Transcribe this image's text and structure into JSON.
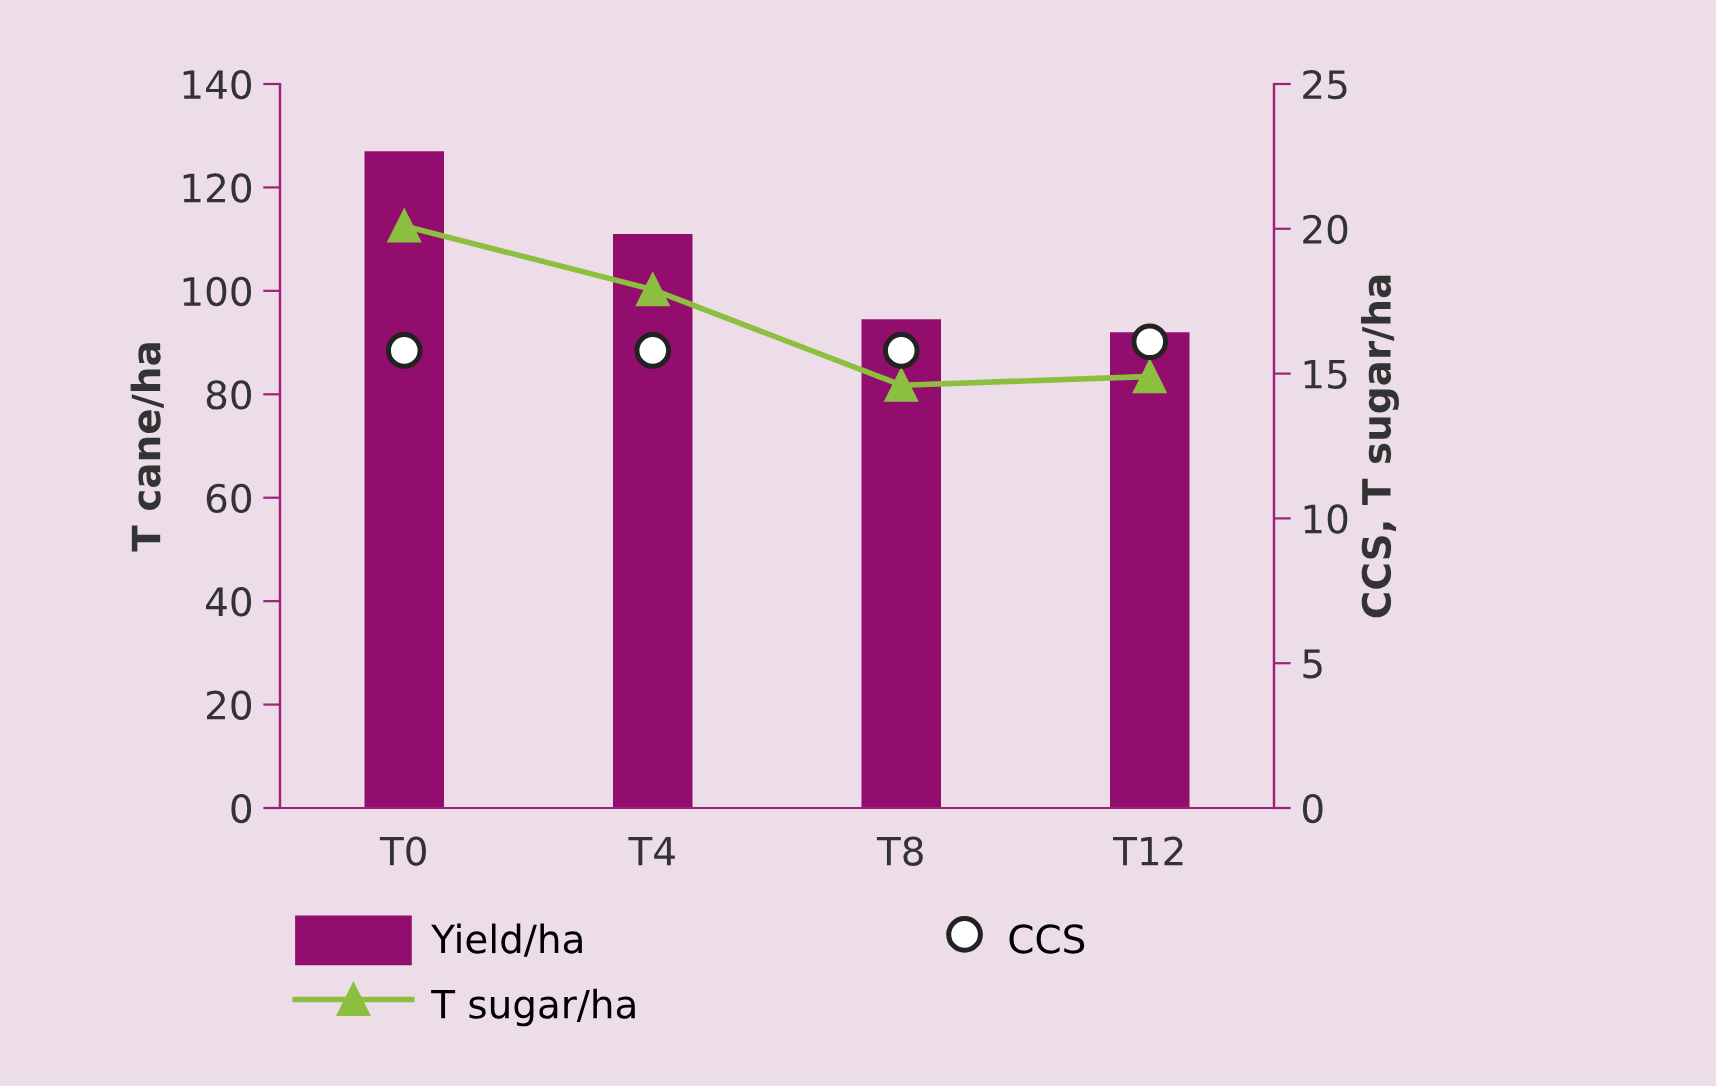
{
  "chart_data": {
    "type": "bar",
    "categories": [
      "T0",
      "T4",
      "T8",
      "T12"
    ],
    "ylabel": "T cane/ha",
    "y2label": "CCS, T sugar/ha",
    "series": [
      {
        "name": "Yield/ha",
        "type": "bar",
        "color": "#930d6e",
        "values": [
          127,
          111,
          94.5,
          92
        ]
      },
      {
        "name": "CCS",
        "type": "scatter",
        "axis": "y2",
        "color": "#ffffff",
        "marker": "circle",
        "values": [
          15.8,
          15.8,
          15.8,
          16.1
        ]
      },
      {
        "name": "T sugar/ha",
        "type": "line",
        "axis": "y2",
        "color": "#8cbf3f",
        "marker": "triangle",
        "values": [
          20.1,
          17.9,
          14.6,
          14.9
        ]
      }
    ],
    "ylim": [
      0,
      140
    ],
    "yticks": [
      0,
      20,
      40,
      60,
      80,
      100,
      120,
      140
    ],
    "y2lim": [
      0,
      25
    ],
    "y2ticks": [
      0,
      5,
      10,
      15,
      20,
      25
    ],
    "grid": false,
    "legend": "bottom"
  }
}
